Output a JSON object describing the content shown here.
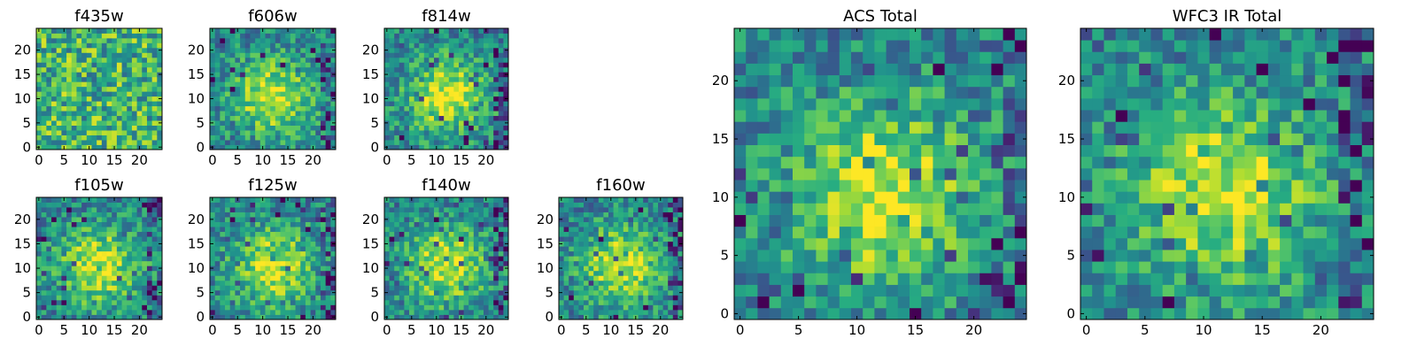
{
  "chart_data": [
    {
      "type": "heatmap",
      "title": "f435w",
      "grid_size": 25,
      "xticks": [
        "0",
        "5",
        "10",
        "15",
        "20"
      ],
      "yticks": [
        "0",
        "5",
        "10",
        "15",
        "20"
      ],
      "colormap": "viridis",
      "pattern": "noise"
    },
    {
      "type": "heatmap",
      "title": "f606w",
      "grid_size": 25,
      "xticks": [
        "0",
        "5",
        "10",
        "15",
        "20"
      ],
      "yticks": [
        "0",
        "5",
        "10",
        "15",
        "20"
      ],
      "colormap": "viridis",
      "pattern": "centered-source"
    },
    {
      "type": "heatmap",
      "title": "f814w",
      "grid_size": 25,
      "xticks": [
        "0",
        "5",
        "10",
        "15",
        "20"
      ],
      "yticks": [
        "0",
        "5",
        "10",
        "15",
        "20"
      ],
      "colormap": "viridis",
      "pattern": "centered-source"
    },
    {
      "type": "heatmap",
      "title": "f105w",
      "grid_size": 25,
      "xticks": [
        "0",
        "5",
        "10",
        "15",
        "20"
      ],
      "yticks": [
        "0",
        "5",
        "10",
        "15",
        "20"
      ],
      "colormap": "viridis",
      "pattern": "centered-source"
    },
    {
      "type": "heatmap",
      "title": "f125w",
      "grid_size": 25,
      "xticks": [
        "0",
        "5",
        "10",
        "15",
        "20"
      ],
      "yticks": [
        "0",
        "5",
        "10",
        "15",
        "20"
      ],
      "colormap": "viridis",
      "pattern": "centered-source"
    },
    {
      "type": "heatmap",
      "title": "f140w",
      "grid_size": 25,
      "xticks": [
        "0",
        "5",
        "10",
        "15",
        "20"
      ],
      "yticks": [
        "0",
        "5",
        "10",
        "15",
        "20"
      ],
      "colormap": "viridis",
      "pattern": "centered-source"
    },
    {
      "type": "heatmap",
      "title": "f160w",
      "grid_size": 25,
      "xticks": [
        "0",
        "5",
        "10",
        "15",
        "20"
      ],
      "yticks": [
        "0",
        "5",
        "10",
        "15",
        "20"
      ],
      "colormap": "viridis",
      "pattern": "centered-source"
    },
    {
      "type": "heatmap",
      "title": "ACS Total",
      "grid_size": 25,
      "xticks": [
        "0",
        "5",
        "10",
        "15",
        "20"
      ],
      "yticks": [
        "0",
        "5",
        "10",
        "15",
        "20"
      ],
      "colormap": "viridis",
      "pattern": "centered-source"
    },
    {
      "type": "heatmap",
      "title": "WFC3 IR Total",
      "grid_size": 25,
      "xticks": [
        "0",
        "5",
        "10",
        "15",
        "20"
      ],
      "yticks": [
        "0",
        "5",
        "10",
        "15",
        "20"
      ],
      "colormap": "viridis",
      "pattern": "centered-source"
    }
  ]
}
